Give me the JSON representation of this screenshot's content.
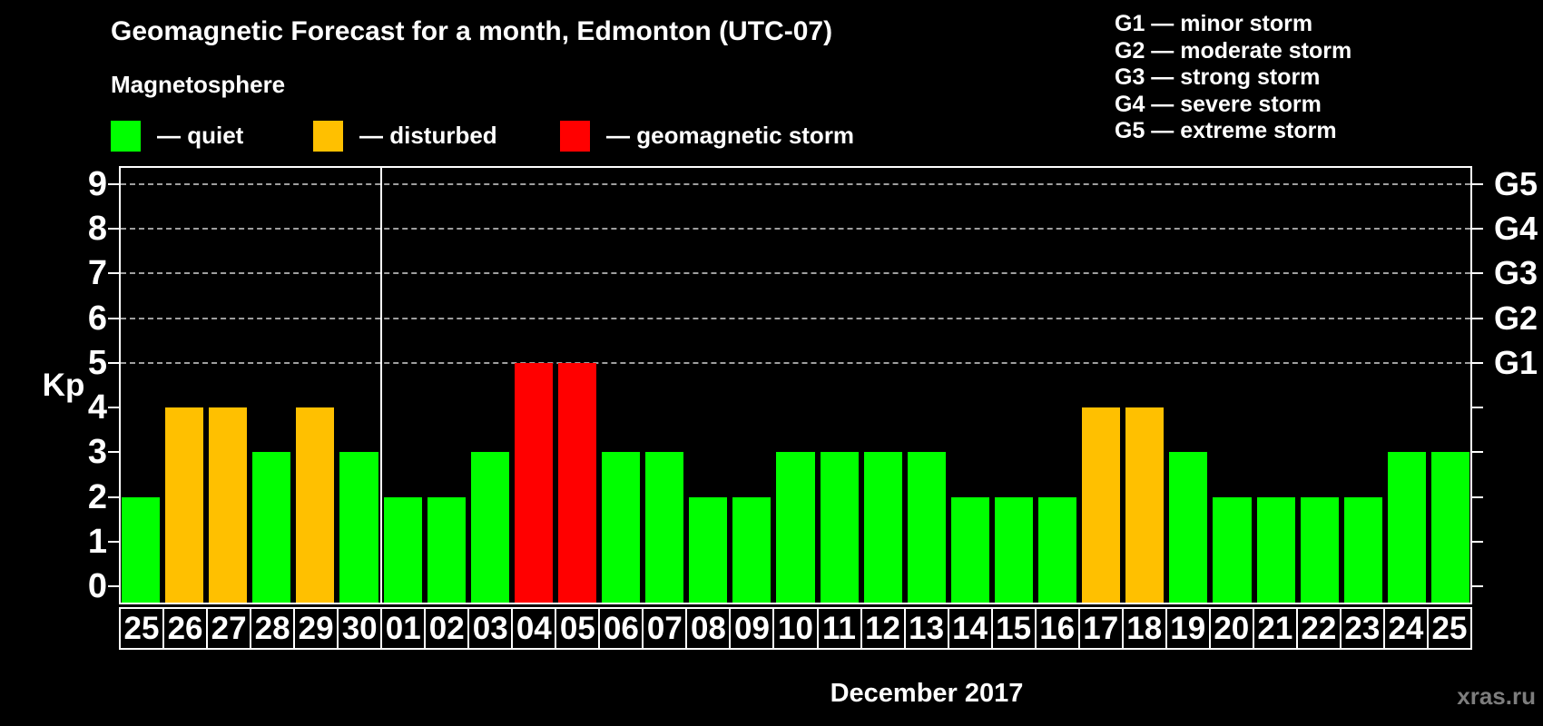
{
  "title": "Geomagnetic Forecast for a month, Edmonton (UTC-07)",
  "subtitle": "Magnetosphere",
  "legend": {
    "items": [
      {
        "name": "quiet",
        "label": "— quiet",
        "color": "#00ff00"
      },
      {
        "name": "disturbed",
        "label": "— disturbed",
        "color": "#ffc000"
      },
      {
        "name": "storm",
        "label": "— geomagnetic storm",
        "color": "#ff0000"
      }
    ]
  },
  "storm_scale_legend": [
    "G1 — minor storm",
    "G2 — moderate storm",
    "G3 — strong storm",
    "G4 — severe storm",
    "G5 — extreme storm"
  ],
  "watermark": "xras.ru",
  "chart_data": {
    "type": "bar",
    "title": "Geomagnetic Forecast for a month, Edmonton (UTC-07)",
    "xlabel": "December 2017",
    "ylabel": "Kp",
    "ylim": [
      -0.4,
      9.4
    ],
    "yticks": [
      0,
      1,
      2,
      3,
      4,
      5,
      6,
      7,
      8,
      9
    ],
    "grid_levels": [
      5,
      6,
      7,
      8,
      9
    ],
    "right_axis_labels": [
      {
        "level": 5,
        "label": "G1"
      },
      {
        "level": 6,
        "label": "G2"
      },
      {
        "level": 7,
        "label": "G3"
      },
      {
        "level": 8,
        "label": "G4"
      },
      {
        "level": 9,
        "label": "G5"
      }
    ],
    "legend_position": "top-left",
    "grid": "dashed horizontal at Kp 5-9",
    "month_separator_after_index": 5,
    "status_colors": {
      "quiet": "#00ff00",
      "disturbed": "#ffc000",
      "storm": "#ff0000"
    },
    "categories": [
      "25",
      "26",
      "27",
      "28",
      "29",
      "30",
      "01",
      "02",
      "03",
      "04",
      "05",
      "06",
      "07",
      "08",
      "09",
      "10",
      "11",
      "12",
      "13",
      "14",
      "15",
      "16",
      "17",
      "18",
      "19",
      "20",
      "21",
      "22",
      "23",
      "24",
      "25"
    ],
    "values": [
      2,
      4,
      4,
      3,
      4,
      3,
      2,
      2,
      3,
      5,
      5,
      3,
      3,
      2,
      2,
      3,
      3,
      3,
      3,
      2,
      2,
      2,
      4,
      4,
      3,
      2,
      2,
      2,
      2,
      3,
      3
    ],
    "statuses": [
      "quiet",
      "disturbed",
      "disturbed",
      "quiet",
      "disturbed",
      "quiet",
      "quiet",
      "quiet",
      "quiet",
      "storm",
      "storm",
      "quiet",
      "quiet",
      "quiet",
      "quiet",
      "quiet",
      "quiet",
      "quiet",
      "quiet",
      "quiet",
      "quiet",
      "quiet",
      "disturbed",
      "disturbed",
      "quiet",
      "quiet",
      "quiet",
      "quiet",
      "quiet",
      "quiet",
      "quiet"
    ]
  }
}
